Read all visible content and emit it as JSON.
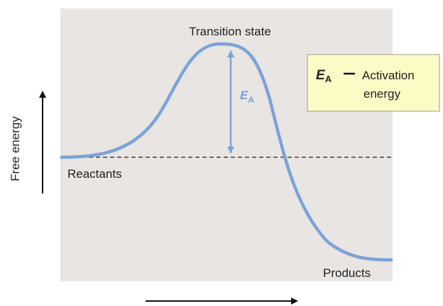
{
  "y_axis_label": "Free energy",
  "labels": {
    "transition_state": "Transition state",
    "reactants": "Reactants",
    "products": "Products"
  },
  "arrow_label": {
    "symbol": "E",
    "subscript": "A"
  },
  "key": {
    "symbol": "E",
    "subscript": "A",
    "text_lines": [
      "Activation",
      "energy"
    ]
  }
}
